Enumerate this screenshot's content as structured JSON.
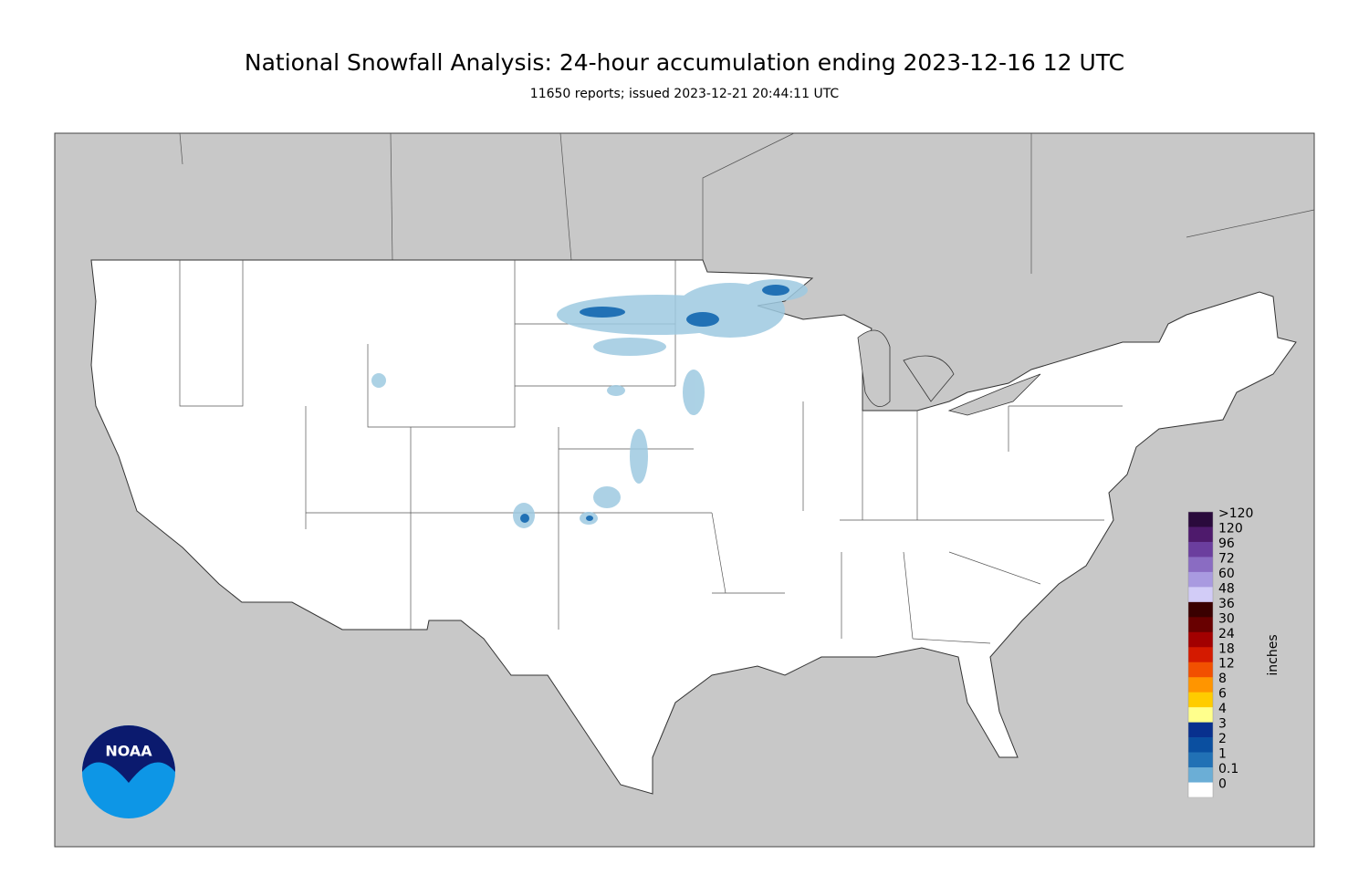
{
  "header": {
    "title": "National Snowfall Analysis: 24-hour accumulation ending 2023-12-16 12 UTC",
    "subtitle": "11650 reports; issued 2023-12-21 20:44:11 UTC"
  },
  "legend": {
    "unit": "inches",
    "levels": [
      {
        "label": ">120",
        "color": "#2a0a3c"
      },
      {
        "label": "120",
        "color": "#4e1a6c"
      },
      {
        "label": "96",
        "color": "#6b3e9e"
      },
      {
        "label": "72",
        "color": "#8a6cc2"
      },
      {
        "label": "60",
        "color": "#a99ae0"
      },
      {
        "label": "48",
        "color": "#d2ccf7"
      },
      {
        "label": "36",
        "color": "#3a0000"
      },
      {
        "label": "30",
        "color": "#680000"
      },
      {
        "label": "24",
        "color": "#a20000"
      },
      {
        "label": "18",
        "color": "#d41a00"
      },
      {
        "label": "12",
        "color": "#f25000"
      },
      {
        "label": "8",
        "color": "#ff9500"
      },
      {
        "label": "6",
        "color": "#ffcc00"
      },
      {
        "label": "4",
        "color": "#ffff8c"
      },
      {
        "label": "3",
        "color": "#08308e"
      },
      {
        "label": "2",
        "color": "#0a4fa0"
      },
      {
        "label": "1",
        "color": "#2171b5"
      },
      {
        "label": "0.1",
        "color": "#6baed6"
      },
      {
        "label": "0",
        "color": "#c6dbef"
      }
    ]
  },
  "logo": {
    "text": "NOAA"
  }
}
